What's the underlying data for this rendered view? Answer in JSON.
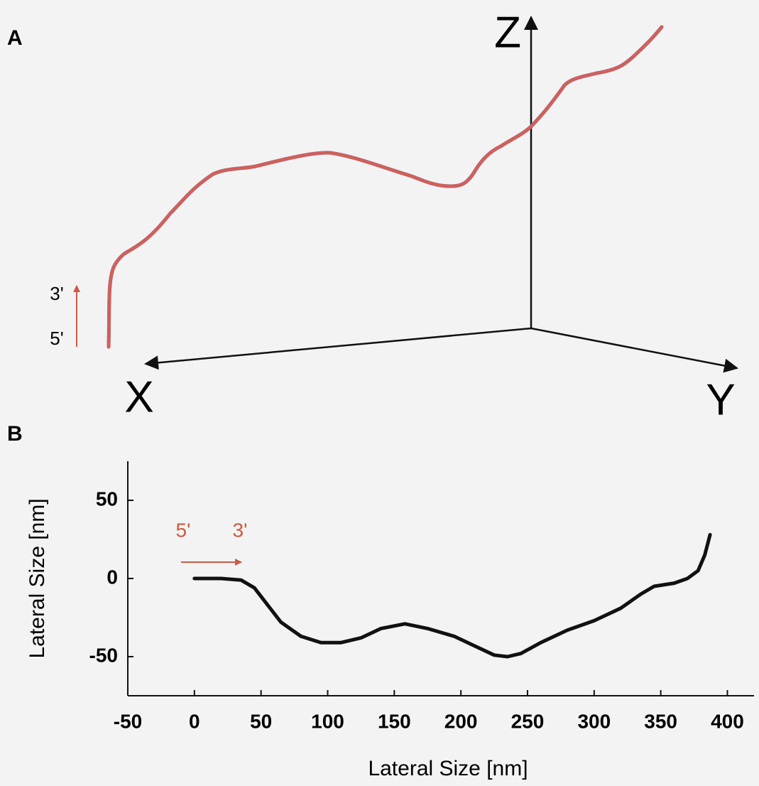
{
  "panel_a": {
    "label": "A",
    "axes": {
      "z": "Z",
      "x": "X",
      "y": "Y"
    },
    "direction": {
      "end": "3'",
      "start": "5'"
    }
  },
  "chart_data": {
    "type": "line",
    "panel_label": "B",
    "xlabel": "Lateral Size [nm]",
    "ylabel": "Lateral Size [nm]",
    "annotations": [
      "5'",
      "3'"
    ],
    "annotation_color": "#cc5a44",
    "xlim": [
      -50,
      420
    ],
    "ylim": [
      -75,
      75
    ],
    "xticks": [
      -50,
      0,
      50,
      100,
      150,
      200,
      250,
      300,
      350,
      400
    ],
    "yticks": [
      -50,
      0,
      50
    ],
    "x": [
      0,
      20,
      35,
      45,
      55,
      65,
      80,
      95,
      110,
      125,
      140,
      158,
      175,
      195,
      210,
      225,
      235,
      245,
      260,
      280,
      300,
      320,
      335,
      345,
      360,
      370,
      378,
      383,
      387
    ],
    "series": [
      {
        "color": "#111111",
        "values": [
          0,
          0,
          -1,
          -6,
          -17,
          -28,
          -37,
          -41,
          -41,
          -38,
          -32,
          -29,
          -32,
          -37,
          -43,
          -49,
          -50,
          -48,
          -41,
          -33,
          -27,
          -19,
          -10,
          -5,
          -3,
          0,
          5,
          15,
          28
        ]
      }
    ]
  }
}
